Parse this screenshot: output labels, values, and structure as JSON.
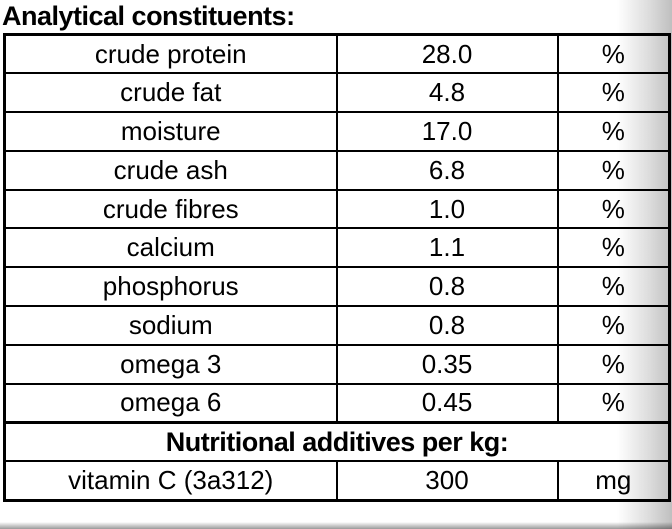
{
  "title": "Analytical constituents:",
  "table": {
    "rows": [
      {
        "label": "crude protein",
        "value": "28.0",
        "unit": "%"
      },
      {
        "label": "crude fat",
        "value": "4.8",
        "unit": "%"
      },
      {
        "label": "moisture",
        "value": "17.0",
        "unit": "%"
      },
      {
        "label": "crude ash",
        "value": "6.8",
        "unit": "%"
      },
      {
        "label": "crude fibres",
        "value": "1.0",
        "unit": "%"
      },
      {
        "label": "calcium",
        "value": "1.1",
        "unit": "%"
      },
      {
        "label": "phosphorus",
        "value": "0.8",
        "unit": "%"
      },
      {
        "label": "sodium",
        "value": "0.8",
        "unit": "%"
      },
      {
        "label": "omega 3",
        "value": "0.35",
        "unit": "%"
      },
      {
        "label": "omega 6",
        "value": "0.45",
        "unit": "%"
      }
    ],
    "section_header": "Nutritional additives per kg:",
    "additive_rows": [
      {
        "label": "vitamin C (3a312)",
        "value": "300",
        "unit": "mg"
      }
    ]
  },
  "colors": {
    "border": "#000000",
    "background": "#ffffff",
    "text": "#000000",
    "edge_shade": "#bfbfbf"
  }
}
